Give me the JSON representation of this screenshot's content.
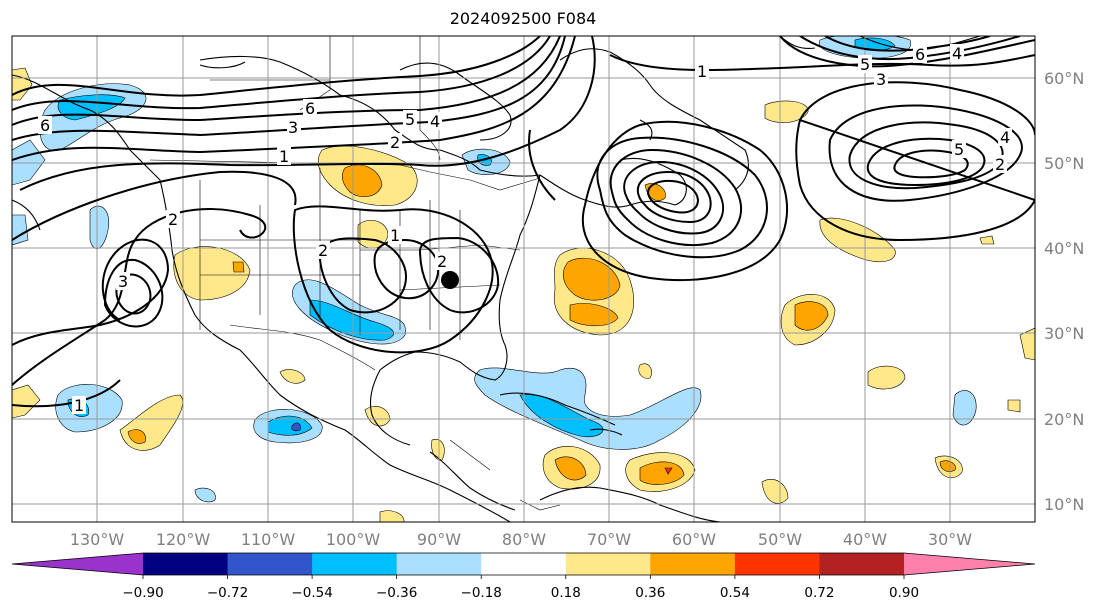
{
  "title": "2024092500 F084",
  "lon_labels": [
    "130°W",
    "120°W",
    "110°W",
    "100°W",
    "90°W",
    "80°W",
    "70°W",
    "60°W",
    "50°W",
    "40°W",
    "30°W"
  ],
  "lat_labels": [
    "60°N",
    "50°N",
    "40°N",
    "30°N",
    "20°N",
    "10°N"
  ],
  "colorbar": {
    "ticks": [
      "−0.90",
      "−0.72",
      "−0.54",
      "−0.36",
      "−0.18",
      "0.18",
      "0.36",
      "0.54",
      "0.72",
      "0.90"
    ],
    "colors": [
      "#9933cc",
      "#000080",
      "#3355cc",
      "#00bfff",
      "#aadfff",
      "#ffffff",
      "#ffe88a",
      "#ffa500",
      "#ff3300",
      "#b22222",
      "#ff80aa"
    ]
  },
  "contour_labels": [
    "1",
    "2",
    "3",
    "4",
    "5",
    "6"
  ],
  "colors": {
    "light_blue": "#aadfff",
    "blue": "#00bfff",
    "mid_blue": "#3355cc",
    "yellow": "#ffe88a",
    "orange": "#ffa500",
    "red": "#ff3300"
  }
}
